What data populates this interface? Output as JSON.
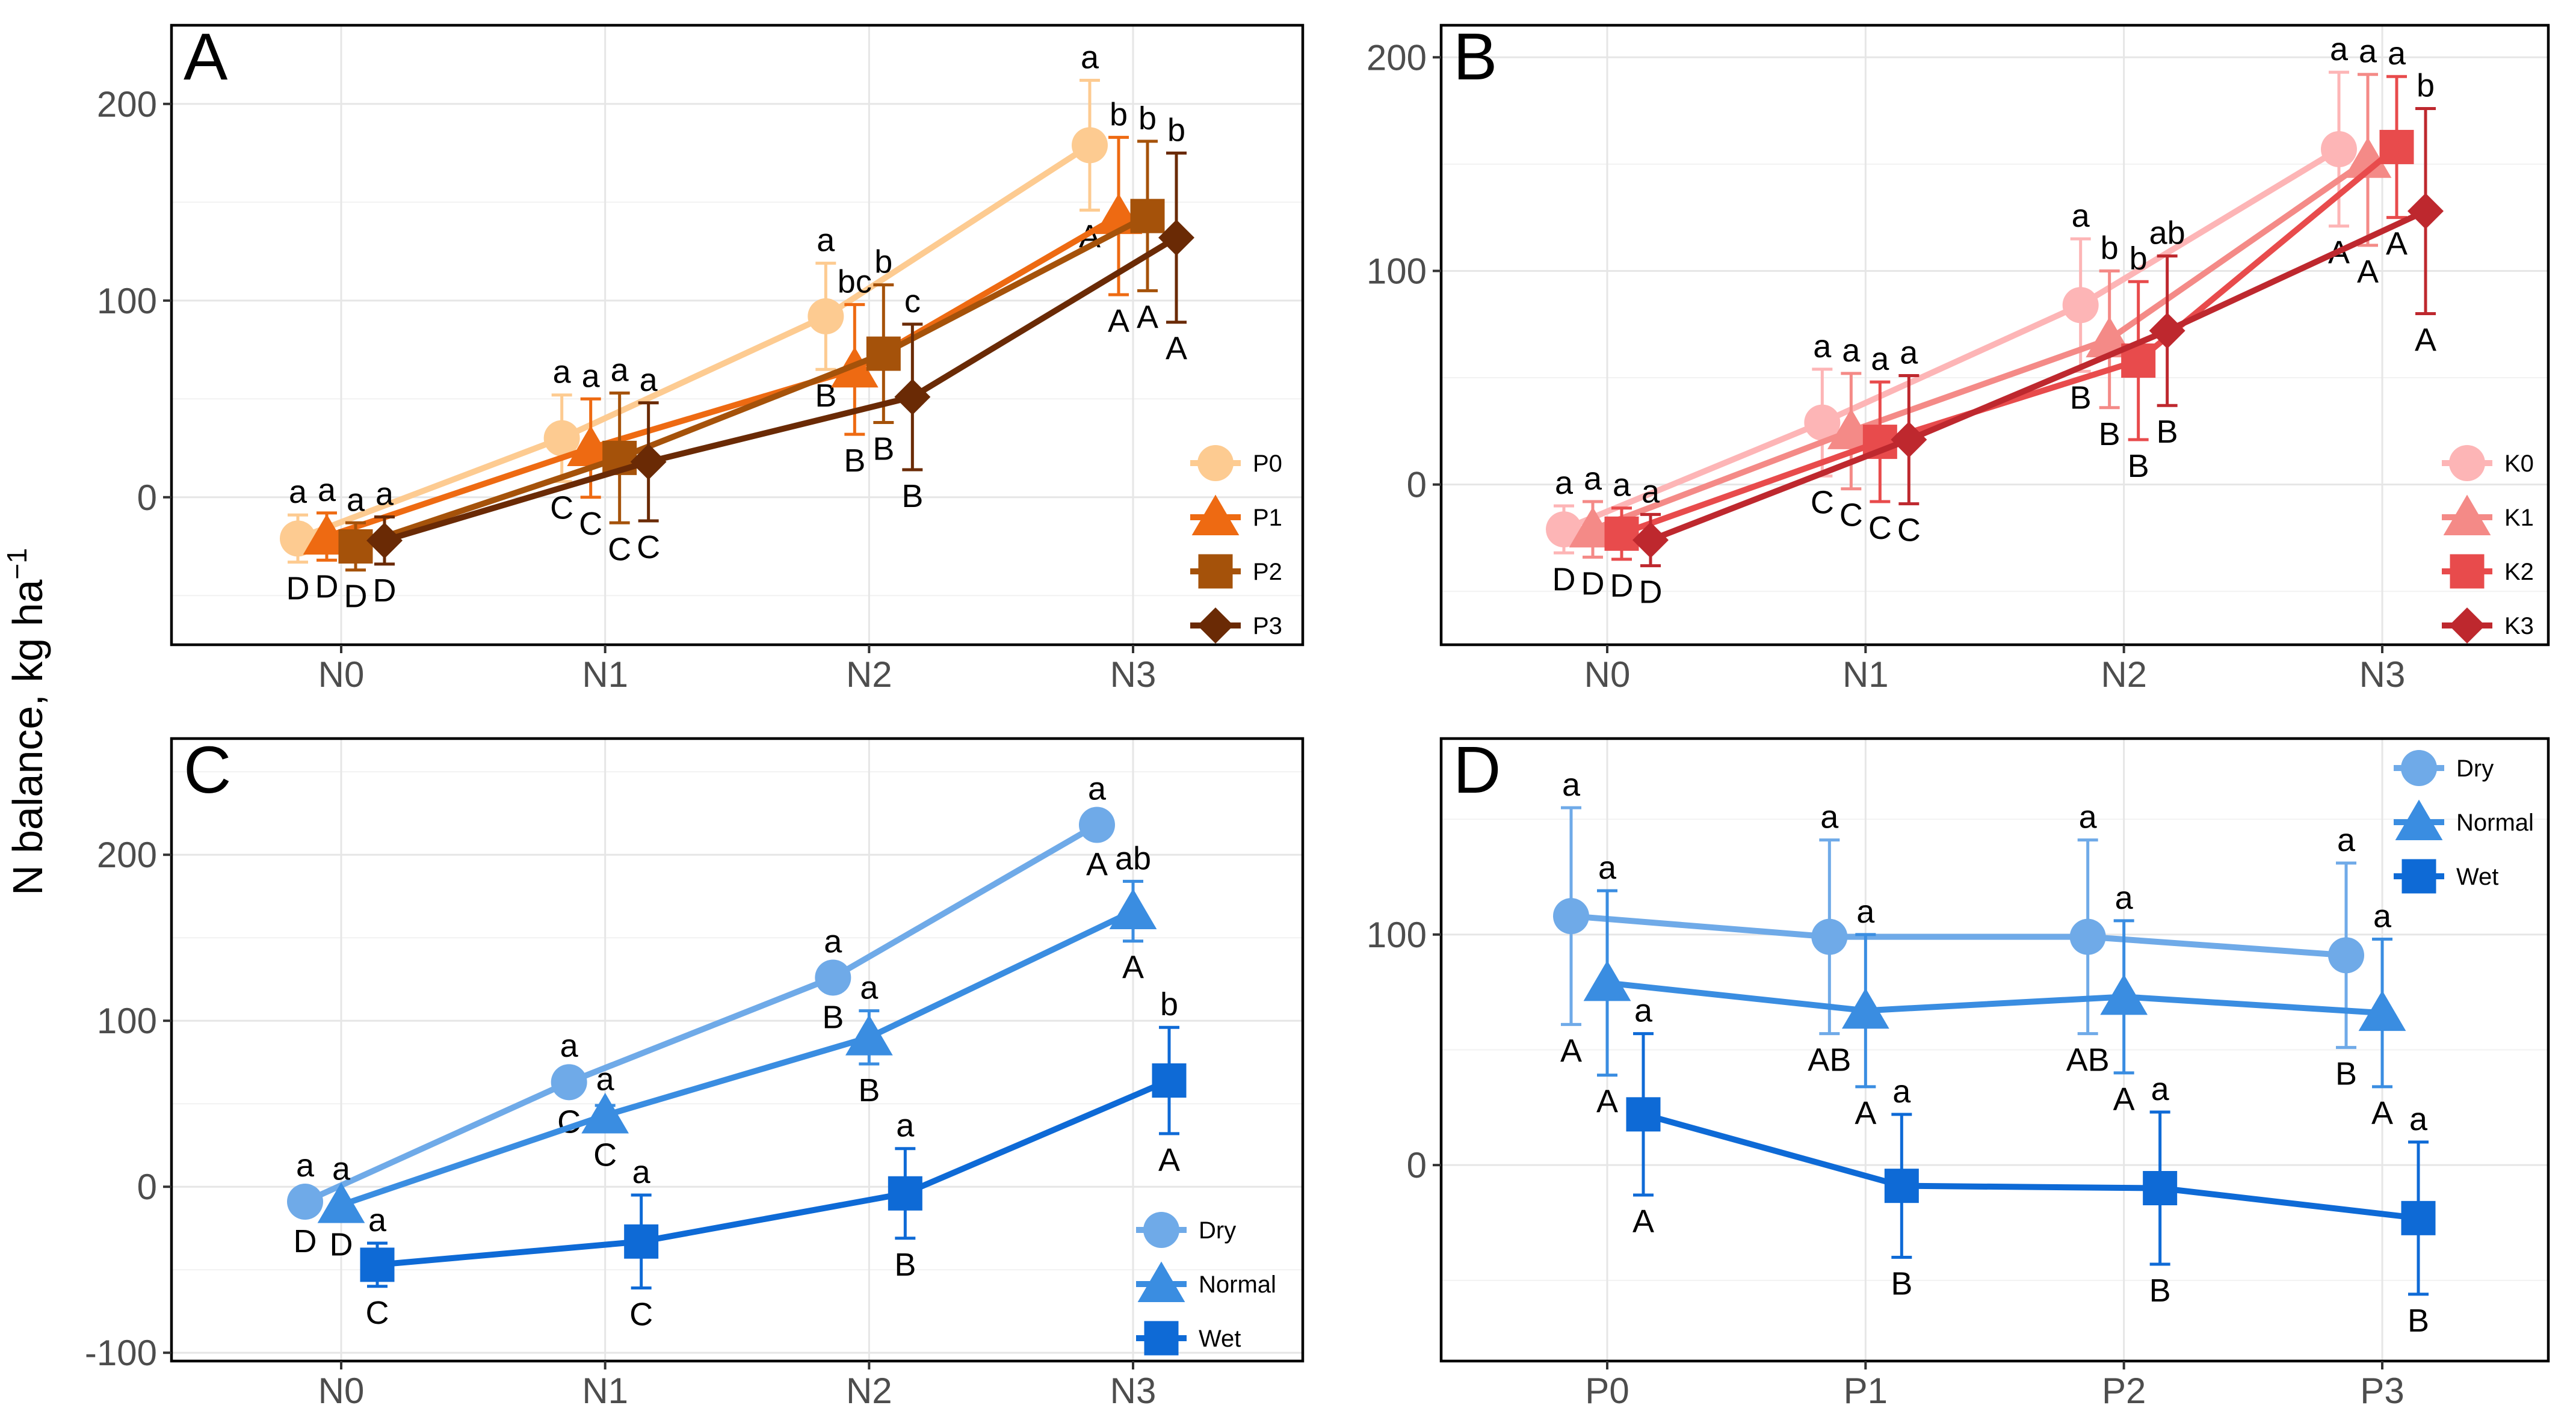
{
  "figure": {
    "y_axis_label": "N balance, kg ha",
    "y_axis_label_sup": "−1"
  },
  "chart_data": [
    {
      "panel": "A",
      "type": "line",
      "categories": [
        "N0",
        "N1",
        "N2",
        "N3"
      ],
      "ylim": [
        -75,
        240
      ],
      "yticks": [
        0,
        100,
        200
      ],
      "legend_position": "bottom-right",
      "series": [
        {
          "name": "P0",
          "color": "#FDCB91",
          "shape": "circle",
          "values": [
            -21,
            30,
            92,
            179
          ],
          "err": [
            12,
            22,
            27,
            33
          ],
          "upper_letters": [
            "a",
            "a",
            "a",
            "a"
          ],
          "lower_letters": [
            "D",
            "C",
            "B",
            "A"
          ]
        },
        {
          "name": "P1",
          "color": "#EE6A12",
          "shape": "triangle",
          "values": [
            -20,
            25,
            65,
            143
          ],
          "err": [
            12,
            25,
            33,
            40
          ],
          "upper_letters": [
            "a",
            "a",
            "bc",
            "b"
          ],
          "lower_letters": [
            "D",
            "C",
            "B",
            "A"
          ]
        },
        {
          "name": "P2",
          "color": "#A5520A",
          "shape": "square",
          "values": [
            -25,
            20,
            73,
            143
          ],
          "err": [
            12,
            33,
            35,
            38
          ],
          "upper_letters": [
            "a",
            "a",
            "b",
            "b"
          ],
          "lower_letters": [
            "D",
            "C",
            "B",
            "A"
          ]
        },
        {
          "name": "P3",
          "color": "#6A2A05",
          "shape": "diamond",
          "values": [
            -22,
            18,
            51,
            132
          ],
          "err": [
            12,
            30,
            37,
            43
          ],
          "upper_letters": [
            "a",
            "a",
            "c",
            "b"
          ],
          "lower_letters": [
            "D",
            "C",
            "B",
            "A"
          ]
        }
      ]
    },
    {
      "panel": "B",
      "type": "line",
      "categories": [
        "N0",
        "N1",
        "N2",
        "N3"
      ],
      "ylim": [
        -75,
        215
      ],
      "yticks": [
        0,
        100,
        200
      ],
      "legend_position": "bottom-right",
      "series": [
        {
          "name": "K0",
          "color": "#FDB5B6",
          "shape": "circle",
          "values": [
            -21,
            29,
            84,
            157
          ],
          "err": [
            11,
            25,
            31,
            36
          ],
          "upper_letters": [
            "a",
            "a",
            "a",
            "a"
          ],
          "lower_letters": [
            "D",
            "C",
            "B",
            "A"
          ]
        },
        {
          "name": "K1",
          "color": "#F48A87",
          "shape": "triangle",
          "values": [
            -21,
            25,
            68,
            152
          ],
          "err": [
            13,
            27,
            32,
            40
          ],
          "upper_letters": [
            "a",
            "a",
            "b",
            "a"
          ],
          "lower_letters": [
            "D",
            "C",
            "B",
            "A"
          ]
        },
        {
          "name": "K2",
          "color": "#E84B4C",
          "shape": "square",
          "values": [
            -23,
            20,
            58,
            158
          ],
          "err": [
            12,
            28,
            37,
            33
          ],
          "upper_letters": [
            "a",
            "a",
            "b",
            "a"
          ],
          "lower_letters": [
            "D",
            "C",
            "B",
            "A"
          ]
        },
        {
          "name": "K3",
          "color": "#BE282E",
          "shape": "diamond",
          "values": [
            -26,
            21,
            72,
            128
          ],
          "err": [
            12,
            30,
            35,
            48
          ],
          "upper_letters": [
            "a",
            "a",
            "ab",
            "b"
          ],
          "lower_letters": [
            "D",
            "C",
            "B",
            "A"
          ]
        }
      ]
    },
    {
      "panel": "C",
      "type": "line",
      "categories": [
        "N0",
        "N1",
        "N2",
        "N3"
      ],
      "ylim": [
        -105,
        270
      ],
      "yticks": [
        -100,
        0,
        100,
        200
      ],
      "legend_position": "bottom-right",
      "series": [
        {
          "name": "Dry",
          "color": "#6FAAE8",
          "shape": "circle",
          "values": [
            -9,
            63,
            126,
            218
          ],
          "err": [
            0,
            0,
            0,
            0
          ],
          "upper_letters": [
            "a",
            "a",
            "a",
            "a"
          ],
          "lower_letters": [
            "D",
            "C",
            "B",
            "A"
          ]
        },
        {
          "name": "Normal",
          "color": "#3A8DE1",
          "shape": "triangle",
          "values": [
            -11,
            43,
            90,
            166
          ],
          "err": [
            0,
            6,
            16,
            18
          ],
          "upper_letters": [
            "a",
            "a",
            "a",
            "ab"
          ],
          "lower_letters": [
            "D",
            "C",
            "B",
            "A"
          ]
        },
        {
          "name": "Wet",
          "color": "#0E6AD6",
          "shape": "square",
          "values": [
            -47,
            -33,
            -4,
            64
          ],
          "err": [
            13,
            28,
            27,
            32
          ],
          "upper_letters": [
            "a",
            "a",
            "a",
            "b"
          ],
          "lower_letters": [
            "C",
            "C",
            "B",
            "A"
          ]
        }
      ]
    },
    {
      "panel": "D",
      "type": "line",
      "categories": [
        "P0",
        "P1",
        "P2",
        "P3"
      ],
      "ylim": [
        -85,
        185
      ],
      "yticks": [
        0,
        100
      ],
      "legend_position": "top-right",
      "series": [
        {
          "name": "Dry",
          "color": "#6FAAE8",
          "shape": "circle",
          "values": [
            108,
            99,
            99,
            91
          ],
          "err": [
            47,
            42,
            42,
            40
          ],
          "upper_letters": [
            "a",
            "a",
            "a",
            "a"
          ],
          "lower_letters": [
            "A",
            "AB",
            "AB",
            "B"
          ]
        },
        {
          "name": "Normal",
          "color": "#3A8DE1",
          "shape": "triangle",
          "values": [
            79,
            67,
            73,
            66
          ],
          "err": [
            40,
            33,
            33,
            32
          ],
          "upper_letters": [
            "a",
            "a",
            "a",
            "a"
          ],
          "lower_letters": [
            "A",
            "A",
            "A",
            "A"
          ]
        },
        {
          "name": "Wet",
          "color": "#0E6AD6",
          "shape": "square",
          "values": [
            22,
            -9,
            -10,
            -23
          ],
          "err": [
            35,
            31,
            33,
            33
          ],
          "upper_letters": [
            "a",
            "a",
            "a",
            "a"
          ],
          "lower_letters": [
            "A",
            "B",
            "B",
            "B"
          ]
        }
      ]
    }
  ]
}
